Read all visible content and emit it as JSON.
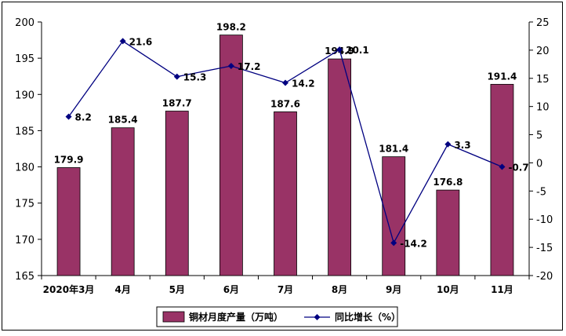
{
  "chart_data": {
    "type": "bar",
    "categories": [
      "2020年3月",
      "4月",
      "5月",
      "6月",
      "7月",
      "8月",
      "9月",
      "10月",
      "11月"
    ],
    "series": [
      {
        "name": "铜材月度产量（万吨）",
        "type": "bar",
        "axis": "left",
        "color": "#993366",
        "values": [
          179.9,
          185.4,
          187.7,
          198.2,
          187.6,
          194.9,
          181.4,
          176.8,
          191.4
        ],
        "labels": [
          "179.9",
          "185.4",
          "187.7",
          "198.2",
          "187.6",
          "194.9",
          "181.4",
          "176.8",
          "191.4"
        ]
      },
      {
        "name": "同比增长（%）",
        "type": "line",
        "axis": "right",
        "color": "#000080",
        "values": [
          8.2,
          21.6,
          15.3,
          17.2,
          14.2,
          20.1,
          -14.2,
          3.3,
          -0.7
        ],
        "labels": [
          "8.2",
          "21.6",
          "15.3",
          "17.2",
          "14.2",
          "20.1",
          "-14.2",
          "3.3",
          "-0.7"
        ]
      }
    ],
    "y_left": {
      "min": 165,
      "max": 200,
      "step": 5,
      "ticks": [
        "165",
        "170",
        "175",
        "180",
        "185",
        "190",
        "195",
        "200"
      ]
    },
    "y_right": {
      "min": -20,
      "max": 25,
      "step": 5,
      "ticks": [
        "-20",
        "-15",
        "-10",
        "-5",
        "0",
        "5",
        "10",
        "15",
        "20",
        "25"
      ]
    },
    "grid": false,
    "legend": "bottom"
  }
}
